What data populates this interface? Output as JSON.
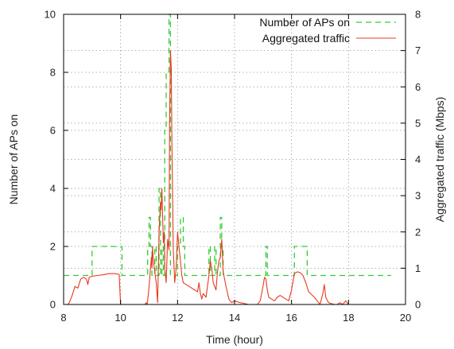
{
  "chart_data": {
    "type": "line",
    "xlabel": "Time (hour)",
    "ylabel_left": "Number of APs on",
    "ylabel_right": "Aggregated traffic (Mbps)",
    "xlim": [
      8,
      20
    ],
    "ylim_left": [
      0,
      10
    ],
    "ylim_right": [
      0,
      8
    ],
    "x_ticks": [
      8,
      10,
      12,
      14,
      16,
      18,
      20
    ],
    "y_left_ticks": [
      0,
      2,
      4,
      6,
      8,
      10
    ],
    "y_right_ticks": [
      0,
      1,
      2,
      3,
      4,
      5,
      6,
      7,
      8
    ],
    "grid": true,
    "legend_position": "top-right",
    "series": [
      {
        "name": "Number of APs on",
        "axis": "left",
        "color": "#33cc33",
        "style": "dashed",
        "step": true,
        "x": [
          8.0,
          8.9,
          9.0,
          10.0,
          10.05,
          10.9,
          10.95,
          11.0,
          11.05,
          11.1,
          11.2,
          11.25,
          11.35,
          11.4,
          11.45,
          11.5,
          11.55,
          11.6,
          11.7,
          11.75,
          11.8,
          12.0,
          12.1,
          12.2,
          12.25,
          13.0,
          13.1,
          13.15,
          13.3,
          13.35,
          13.5,
          13.55,
          13.6,
          13.7,
          15.0,
          15.1,
          15.15,
          16.0,
          16.1,
          16.2,
          16.5,
          16.55,
          19.5
        ],
        "values": [
          1,
          1,
          2,
          2,
          1,
          1,
          2,
          3,
          2,
          1,
          2,
          1,
          4,
          1,
          2,
          1,
          6,
          8,
          10,
          1,
          1,
          2,
          3,
          2,
          1,
          1,
          2,
          1,
          2,
          1,
          3,
          2,
          1,
          1,
          1,
          2,
          1,
          1,
          2,
          2,
          2,
          1,
          1
        ]
      },
      {
        "name": "Aggregated traffic",
        "axis": "right",
        "color": "#e83a1f",
        "style": "solid",
        "x": [
          8.15,
          8.2,
          8.3,
          8.4,
          8.5,
          8.6,
          8.7,
          8.8,
          8.85,
          8.9,
          9.0,
          9.2,
          9.4,
          9.6,
          9.8,
          9.95,
          10.0,
          10.05,
          10.1,
          10.5,
          10.85,
          10.9,
          10.93,
          10.95,
          11.0,
          11.05,
          11.08,
          11.1,
          11.12,
          11.15,
          11.2,
          11.25,
          11.3,
          11.35,
          11.4,
          11.42,
          11.45,
          11.5,
          11.53,
          11.55,
          11.6,
          11.65,
          11.7,
          11.72,
          11.75,
          11.78,
          11.8,
          11.85,
          11.9,
          11.95,
          12.0,
          12.05,
          12.1,
          12.15,
          12.2,
          12.3,
          12.4,
          12.6,
          12.7,
          12.75,
          12.8,
          12.85,
          12.9,
          13.0,
          13.05,
          13.1,
          13.15,
          13.2,
          13.25,
          13.3,
          13.35,
          13.4,
          13.45,
          13.5,
          13.55,
          13.6,
          13.7,
          13.8,
          13.9,
          14.0,
          14.2,
          14.5,
          14.8,
          14.9,
          15.0,
          15.05,
          15.1,
          15.15,
          15.2,
          15.3,
          15.4,
          15.5,
          15.6,
          15.8,
          15.9,
          16.0,
          16.1,
          16.2,
          16.3,
          16.4,
          16.5,
          16.6,
          16.8,
          16.9,
          17.0,
          17.1,
          17.15,
          17.2,
          17.3,
          17.5,
          17.6,
          17.7,
          17.8,
          17.9,
          18.0
        ],
        "values": [
          0.0,
          0.05,
          0.25,
          0.5,
          0.45,
          0.7,
          0.75,
          0.7,
          0.55,
          0.75,
          0.78,
          0.8,
          0.82,
          0.85,
          0.85,
          0.83,
          0.0,
          0.0,
          0.0,
          0.0,
          0.0,
          0.05,
          0.0,
          0.1,
          0.5,
          1.0,
          1.3,
          1.0,
          1.6,
          1.2,
          0.9,
          0.6,
          0.05,
          2.0,
          2.8,
          2.6,
          3.2,
          1.7,
          2.0,
          1.0,
          0.6,
          1.8,
          1.5,
          5.0,
          7.0,
          6.5,
          4.5,
          1.5,
          0.6,
          1.0,
          2.0,
          1.6,
          1.2,
          0.8,
          0.6,
          0.55,
          0.5,
          0.4,
          0.35,
          0.6,
          0.3,
          0.15,
          0.3,
          0.2,
          0.5,
          0.8,
          1.2,
          1.0,
          0.6,
          0.5,
          0.4,
          0.9,
          1.2,
          1.3,
          1.8,
          0.9,
          0.5,
          0.15,
          0.05,
          0.1,
          0.05,
          0.0,
          0.0,
          0.1,
          0.5,
          0.75,
          0.7,
          0.4,
          0.2,
          0.15,
          0.1,
          0.2,
          0.25,
          0.15,
          0.1,
          0.4,
          0.85,
          0.9,
          0.88,
          0.8,
          0.6,
          0.35,
          0.2,
          0.1,
          0.0,
          0.3,
          0.55,
          0.2,
          0.05,
          0.0,
          0.0,
          0.05,
          0.0,
          0.1,
          0.0
        ]
      }
    ]
  }
}
